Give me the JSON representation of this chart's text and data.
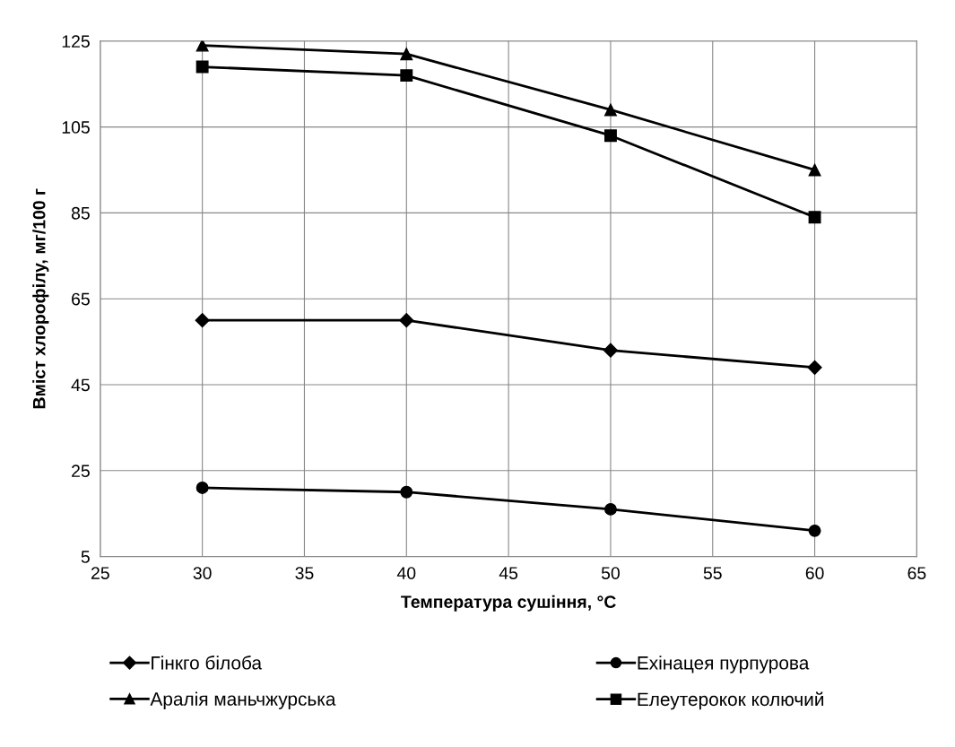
{
  "chart_data": {
    "type": "line",
    "xlabel": "Температура сушіння, °C",
    "ylabel": "Вміст хлорофілу, мг/100 г",
    "x": [
      30,
      40,
      50,
      60
    ],
    "series": [
      {
        "name": "Гінкго білоба",
        "color": "#000000",
        "marker": "diamond",
        "values": [
          60,
          60,
          53,
          49
        ]
      },
      {
        "name": "Ехінацея пурпурова",
        "color": "#000000",
        "marker": "circle",
        "values": [
          21,
          20,
          16,
          11
        ]
      },
      {
        "name": "Аралія маньчжурська",
        "color": "#000000",
        "marker": "triangle",
        "values": [
          124,
          122,
          109,
          95
        ]
      },
      {
        "name": "Елеутерокок колючий",
        "color": "#000000",
        "marker": "square",
        "values": [
          119,
          117,
          103,
          84
        ]
      }
    ],
    "xlim": [
      25,
      65
    ],
    "xticks": [
      25,
      30,
      35,
      40,
      45,
      50,
      55,
      60,
      65
    ],
    "ylim": [
      5,
      125
    ],
    "yticks": [
      5,
      25,
      45,
      65,
      85,
      105,
      125
    ],
    "grid": true,
    "legend": "bottom",
    "line_style": "solid"
  }
}
